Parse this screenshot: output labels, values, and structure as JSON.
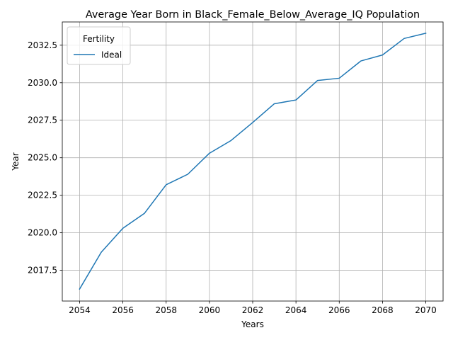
{
  "chart_data": {
    "type": "line",
    "title": "Average Year Born in Black_Female_Below_Average_IQ Population",
    "xlabel": "Years",
    "ylabel": "Year",
    "xlim": [
      2053.2,
      2070.8
    ],
    "ylim": [
      2015.45,
      2034.05
    ],
    "x_ticks": [
      2054,
      2056,
      2058,
      2060,
      2062,
      2064,
      2066,
      2068,
      2070
    ],
    "x_tick_labels": [
      "2054",
      "2056",
      "2058",
      "2060",
      "2062",
      "2064",
      "2066",
      "2068",
      "2070"
    ],
    "y_ticks": [
      2017.5,
      2020.0,
      2022.5,
      2025.0,
      2027.5,
      2030.0,
      2032.5
    ],
    "y_tick_labels": [
      "2017.5",
      "2020.0",
      "2022.5",
      "2025.0",
      "2027.5",
      "2030.0",
      "2032.5"
    ],
    "grid": true,
    "legend": {
      "title": "Fertility",
      "placement": "top-left"
    },
    "series": [
      {
        "name": "Ideal",
        "color": "#1f77b4",
        "x": [
          2054,
          2055,
          2056,
          2057,
          2058,
          2059,
          2060,
          2061,
          2062,
          2063,
          2064,
          2065,
          2066,
          2067,
          2068,
          2069,
          2070
        ],
        "y": [
          2016.25,
          2018.7,
          2020.3,
          2021.3,
          2023.2,
          2023.9,
          2025.3,
          2026.15,
          2027.35,
          2028.6,
          2028.85,
          2030.15,
          2030.3,
          2031.45,
          2031.85,
          2032.95,
          2033.3
        ]
      }
    ]
  }
}
